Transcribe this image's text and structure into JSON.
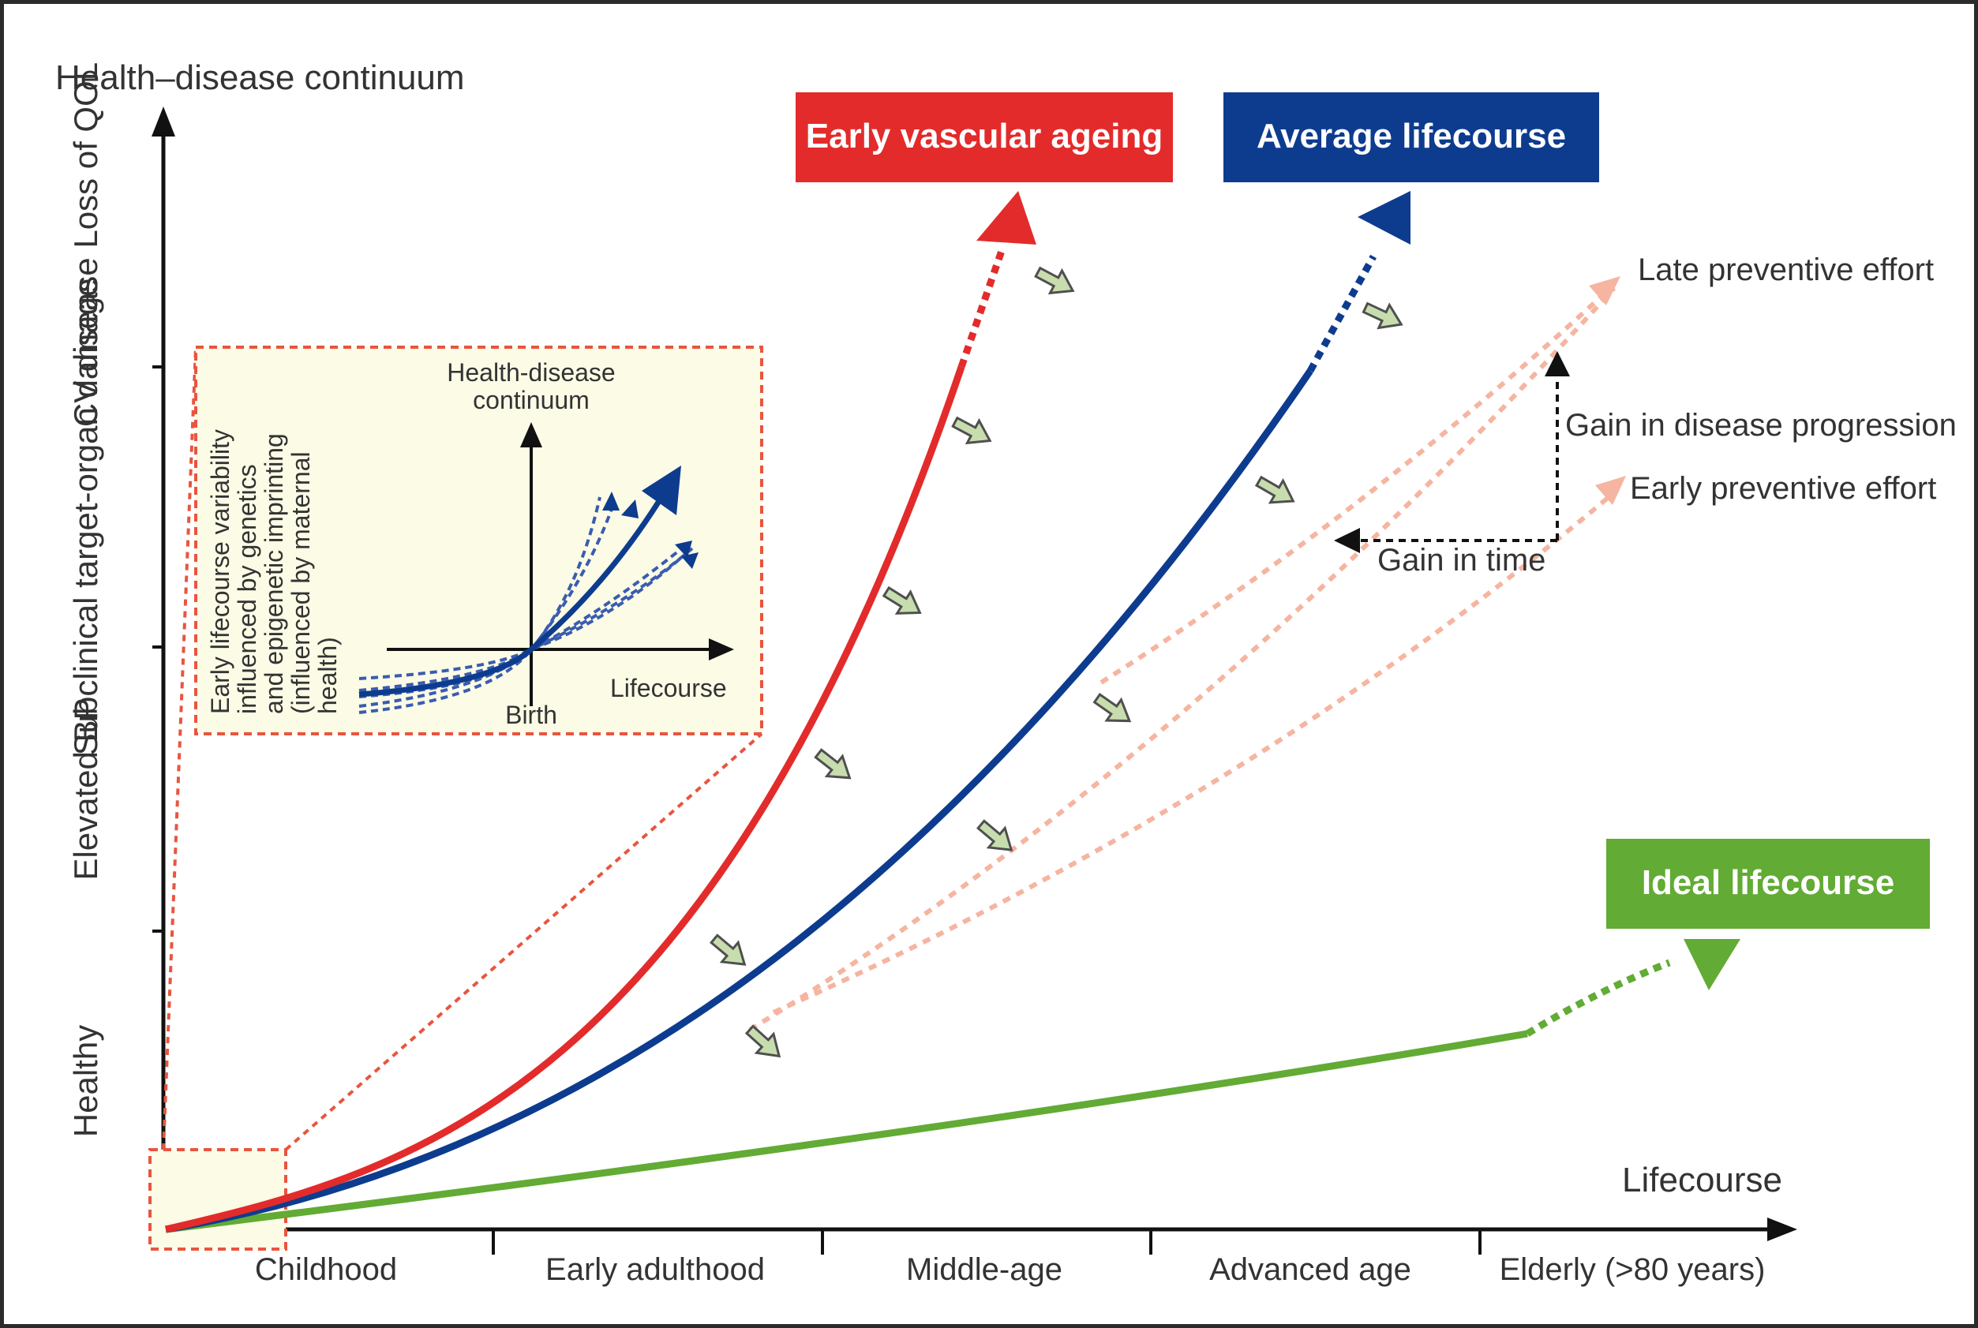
{
  "axis": {
    "y_title": "Health–disease continuum",
    "x_title": "Lifecourse",
    "y_levels": [
      "Healthy",
      "Elevated BP",
      "Subclinical target-organ damage",
      "CV disease Loss of QOL"
    ],
    "x_stages": [
      "Childhood",
      "Early adulthood",
      "Middle-age",
      "Advanced age",
      "Elderly (>80 years)"
    ]
  },
  "curves": {
    "early": {
      "label": "Early vascular ageing",
      "color": "#e32b2b"
    },
    "average": {
      "label": "Average lifecourse",
      "color": "#0d3c8f"
    },
    "ideal": {
      "label": "Ideal lifecourse",
      "color": "#62ab34"
    }
  },
  "efforts": {
    "late": "Late preventive effort",
    "early": "Early preventive effort",
    "gain_progression": "Gain in disease progression",
    "gain_time": "Gain in time",
    "color": "#f5b5a0"
  },
  "inset": {
    "y_title_1": "Health-disease",
    "y_title_2": "continuum",
    "x_title": "Lifecourse",
    "birth": "Birth",
    "note_lines": [
      "Early lifecourse variability",
      "influenced by genetics",
      "and epigenetic imprinting",
      "(influenced by maternal",
      "health)"
    ]
  }
}
